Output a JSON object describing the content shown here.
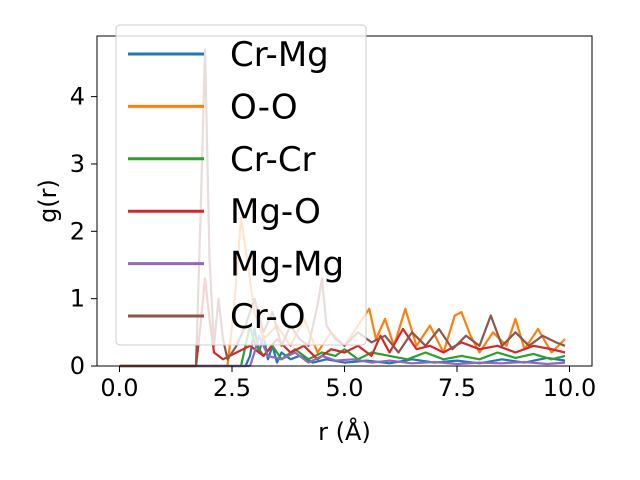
{
  "chart_data": {
    "type": "line",
    "title": "",
    "xlabel": "r (Å)",
    "ylabel": "g(r)",
    "xlim": [
      -0.5,
      10.5
    ],
    "ylim": [
      0,
      4.9
    ],
    "xticks": [
      0.0,
      2.5,
      5.0,
      7.5,
      10.0
    ],
    "xtick_labels": [
      "0.0",
      "2.5",
      "5.0",
      "7.5",
      "10.0"
    ],
    "yticks": [
      0,
      1,
      2,
      3,
      4
    ],
    "ytick_labels": [
      "0",
      "1",
      "2",
      "3",
      "4"
    ],
    "grid": false,
    "legend_position": "upper-left",
    "series": [
      {
        "name": "Cr-Mg",
        "color": "#1f77b4",
        "x": [
          0,
          2.8,
          2.9,
          3.0,
          3.1,
          3.2,
          3.3,
          3.4,
          3.5,
          3.6,
          3.8,
          4.0,
          4.3,
          4.6,
          5.0,
          5.5,
          6.0,
          6.5,
          7.0,
          7.5,
          8.0,
          8.5,
          9.0,
          9.5,
          9.9
        ],
        "y": [
          0,
          0,
          0.15,
          0.55,
          0.2,
          0.45,
          0.1,
          0.3,
          0.05,
          0.2,
          0.1,
          0.15,
          0.05,
          0.1,
          0.05,
          0.08,
          0.04,
          0.1,
          0.05,
          0.08,
          0.04,
          0.1,
          0.05,
          0.12,
          0.08
        ]
      },
      {
        "name": "O-O",
        "color": "#ff7f0e",
        "x": [
          0,
          2.4,
          2.55,
          2.7,
          2.85,
          3.0,
          3.2,
          3.5,
          3.8,
          4.1,
          4.4,
          4.7,
          5.0,
          5.3,
          5.55,
          5.7,
          5.9,
          6.1,
          6.35,
          6.6,
          6.9,
          7.2,
          7.45,
          7.6,
          7.8,
          8.0,
          8.3,
          8.6,
          8.8,
          9.0,
          9.3,
          9.6,
          9.9
        ],
        "y": [
          0,
          0,
          0.9,
          2.2,
          1.5,
          0.8,
          0.4,
          0.6,
          0.3,
          0.7,
          0.2,
          0.5,
          0.3,
          0.6,
          0.85,
          0.4,
          0.7,
          0.3,
          0.85,
          0.3,
          0.6,
          0.2,
          0.75,
          0.8,
          0.45,
          0.2,
          0.5,
          0.3,
          0.7,
          0.25,
          0.55,
          0.2,
          0.4
        ]
      },
      {
        "name": "Cr-Cr",
        "color": "#2ca02c",
        "x": [
          0,
          2.7,
          2.8,
          2.9,
          3.0,
          3.2,
          3.4,
          3.6,
          3.9,
          4.2,
          4.5,
          4.8,
          5.0,
          5.3,
          5.6,
          6.0,
          6.4,
          6.8,
          7.2,
          7.6,
          8.0,
          8.4,
          8.8,
          9.2,
          9.6,
          9.9
        ],
        "y": [
          0,
          0,
          0.3,
          0.6,
          0.35,
          0.15,
          0.3,
          0.1,
          0.25,
          0.1,
          0.2,
          0.15,
          0.25,
          0.1,
          0.2,
          0.15,
          0.1,
          0.2,
          0.1,
          0.15,
          0.1,
          0.2,
          0.12,
          0.18,
          0.1,
          0.15
        ]
      },
      {
        "name": "Mg-O",
        "color": "#d62728",
        "x": [
          0,
          1.7,
          1.8,
          1.9,
          2.0,
          2.1,
          2.3,
          2.6,
          2.9,
          3.2,
          3.5,
          3.8,
          4.1,
          4.4,
          4.7,
          5.0,
          5.3,
          5.6,
          5.8,
          6.0,
          6.3,
          6.6,
          6.9,
          7.2,
          7.6,
          8.0,
          8.4,
          8.8,
          9.2,
          9.6,
          9.9
        ],
        "y": [
          0,
          0,
          0.6,
          1.3,
          0.7,
          0.2,
          0.1,
          0.2,
          0.3,
          0.15,
          0.4,
          0.2,
          0.3,
          0.1,
          0.25,
          0.2,
          0.3,
          0.15,
          0.45,
          0.2,
          0.55,
          0.25,
          0.3,
          0.2,
          0.35,
          0.25,
          0.3,
          0.2,
          0.3,
          0.25,
          0.2
        ]
      },
      {
        "name": "Mg-Mg",
        "color": "#9467bd",
        "x": [
          0,
          2.9,
          3.0,
          3.1,
          3.3,
          3.6,
          3.9,
          4.2,
          4.5,
          4.8,
          5.2,
          5.6,
          6.0,
          6.5,
          7.0,
          7.5,
          8.0,
          8.5,
          9.0,
          9.5,
          9.9
        ],
        "y": [
          0,
          0,
          0.2,
          0.45,
          0.15,
          0.1,
          0.2,
          0.05,
          0.15,
          0.08,
          0.1,
          0.05,
          0.08,
          0.04,
          0.06,
          0.03,
          0.05,
          0.04,
          0.06,
          0.03,
          0.05
        ]
      },
      {
        "name": "Cr-O",
        "color": "#8c564b",
        "x": [
          0,
          1.7,
          1.8,
          1.9,
          2.0,
          2.1,
          2.2,
          2.3,
          2.4,
          2.6,
          2.8,
          3.0,
          3.2,
          3.4,
          3.6,
          3.8,
          4.0,
          4.2,
          4.4,
          4.5,
          4.6,
          4.8,
          5.0,
          5.3,
          5.6,
          5.9,
          6.2,
          6.5,
          6.8,
          7.1,
          7.4,
          7.7,
          8.0,
          8.25,
          8.5,
          8.8,
          9.1,
          9.4,
          9.7,
          9.9
        ],
        "y": [
          0,
          0,
          2.2,
          4.7,
          1.6,
          0.3,
          1.0,
          0.4,
          0.1,
          0.3,
          0.6,
          1.0,
          0.5,
          0.8,
          0.3,
          0.6,
          0.4,
          0.3,
          0.9,
          1.3,
          0.6,
          0.4,
          0.3,
          0.5,
          0.35,
          0.45,
          0.2,
          0.5,
          0.3,
          0.55,
          0.25,
          0.45,
          0.3,
          0.75,
          0.3,
          0.5,
          0.3,
          0.45,
          0.35,
          0.3
        ]
      }
    ]
  }
}
